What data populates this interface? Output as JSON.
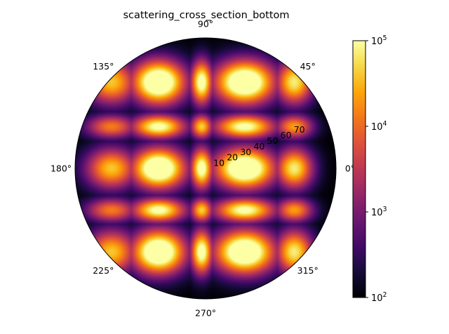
{
  "chart_data": {
    "type": "heatmap",
    "projection": "polar",
    "title": "scattering_cross_section_bottom",
    "theta_tick_labels": [
      "0°",
      "45°",
      "90°",
      "135°",
      "180°",
      "225°",
      "270°",
      "315°"
    ],
    "theta_ticks_deg": [
      0,
      45,
      90,
      135,
      180,
      225,
      270,
      315
    ],
    "r_tick_labels": [
      "10",
      "20",
      "30",
      "40",
      "50",
      "60",
      "70"
    ],
    "r_ticks": [
      10,
      20,
      30,
      40,
      50,
      60,
      70
    ],
    "r_max": 90,
    "r_tick_label_angle_deg": 22.5,
    "colormap": "inferno",
    "color_scale": "log",
    "color_range": [
      100,
      100000
    ],
    "colorbar": {
      "position": "right",
      "ticks": [
        100,
        1000,
        10000,
        100000
      ],
      "tick_labels": [
        {
          "base": "10",
          "exp": "2"
        },
        {
          "base": "10",
          "exp": "3"
        },
        {
          "base": "10",
          "exp": "4"
        },
        {
          "base": "10",
          "exp": "5"
        }
      ]
    },
    "lobe_grid": {
      "x_centers": [
        -0.72,
        -0.36,
        -0.03,
        0.3,
        0.68
      ],
      "x_widths": [
        0.15,
        0.16,
        0.065,
        0.18,
        0.11
      ],
      "x_amplitudes": [
        0.5,
        1.0,
        0.75,
        1.0,
        0.6
      ],
      "y_centers": [
        0.66,
        0.32,
        0.0,
        -0.32,
        -0.64
      ],
      "y_widths": [
        0.13,
        0.07,
        0.12,
        0.07,
        0.13
      ],
      "y_amplitudes": [
        1.0,
        0.7,
        1.0,
        0.7,
        1.0
      ],
      "log_floor": 2.0,
      "log_peak": 5.8
    }
  }
}
